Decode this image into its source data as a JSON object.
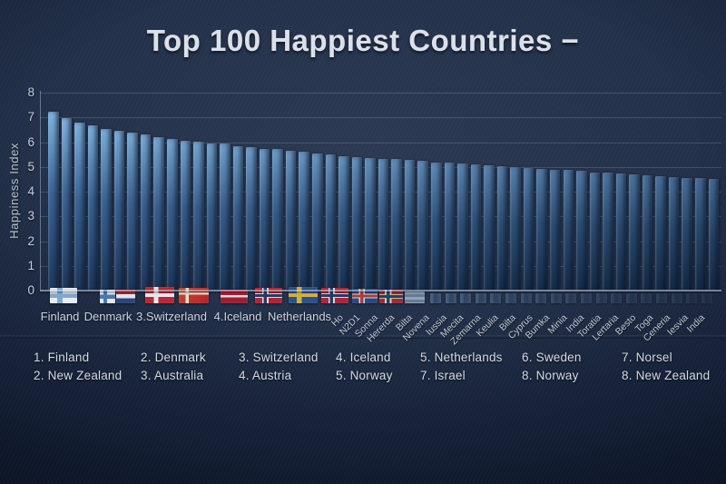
{
  "title": "Top 100 Happiest Countries −",
  "colors": {
    "background_center": "#2b3a52",
    "background_edge": "#0a1221",
    "title_text": "#dbe0ea",
    "axis_text": "#c6cdd9",
    "bar_top_first": "#7fb3e0",
    "bar_top_last": "#3e608a",
    "bar_bottom": "#1c3656"
  },
  "chart_data": {
    "type": "bar",
    "title": "Top 100 Happiest Countries",
    "xlabel": "",
    "ylabel": "Happiness Index",
    "ylim": [
      0,
      8
    ],
    "yticks": [
      0,
      1,
      2,
      3,
      4,
      5,
      6,
      7,
      8
    ],
    "grid": true,
    "legend_position": "none",
    "values": [
      7.23,
      6.97,
      6.79,
      6.68,
      6.54,
      6.46,
      6.39,
      6.31,
      6.21,
      6.14,
      6.06,
      6.03,
      5.94,
      5.94,
      5.84,
      5.8,
      5.73,
      5.73,
      5.65,
      5.6,
      5.53,
      5.5,
      5.44,
      5.41,
      5.37,
      5.34,
      5.32,
      5.28,
      5.24,
      5.19,
      5.16,
      5.13,
      5.09,
      5.06,
      5.02,
      4.99,
      4.97,
      4.93,
      4.89,
      4.87,
      4.83,
      4.79,
      4.77,
      4.73,
      4.69,
      4.67,
      4.63,
      4.59,
      4.57,
      4.54,
      4.51
    ],
    "x_labels_horizontal": [
      "Finland",
      "Denmark",
      "3.Switzerland",
      "4.Iceland",
      "Netherlands"
    ],
    "x_labels_rotated": [
      "Ho",
      "N2D1",
      "Sonna",
      "Hererda",
      "Bilta",
      "Novena",
      "Iussia",
      "Mecita",
      "Zemarna",
      "Keulia",
      "Bilta",
      "Cyprus",
      "Bumka",
      "Minia",
      "India",
      "Toratia",
      "Lertaria",
      "Besto",
      "Toga",
      "Ceneria",
      "Iesvia",
      "India"
    ],
    "flags": [
      "finland",
      "finland-small",
      "netherlands",
      "denmark",
      "denmark-emblem",
      "austria",
      "norway",
      "sweden",
      "norway",
      "iceland",
      "norway-emblem",
      "greece",
      "faded",
      "faded",
      "faded",
      "faded",
      "faded",
      "faded",
      "faded",
      "faded",
      "faded",
      "faded",
      "faded",
      "faded",
      "faded",
      "faded",
      "faded",
      "faded",
      "faded",
      "faded",
      "faded"
    ]
  },
  "legend": {
    "columns": [
      {
        "top": "1. Finland",
        "bottom": "2. New Zealand"
      },
      {
        "top": "2. Denmark",
        "bottom": "3. Australia"
      },
      {
        "top": "3. Switzerland",
        "bottom": "4. Austria"
      },
      {
        "top": "4. Iceland",
        "bottom": "5. Norway"
      },
      {
        "top": "5. Netherlands",
        "bottom": "7. Israel"
      },
      {
        "top": "6. Sweden",
        "bottom": "8. Norway"
      },
      {
        "top": "7. Norsel",
        "bottom": "8. New Zealand"
      }
    ]
  }
}
